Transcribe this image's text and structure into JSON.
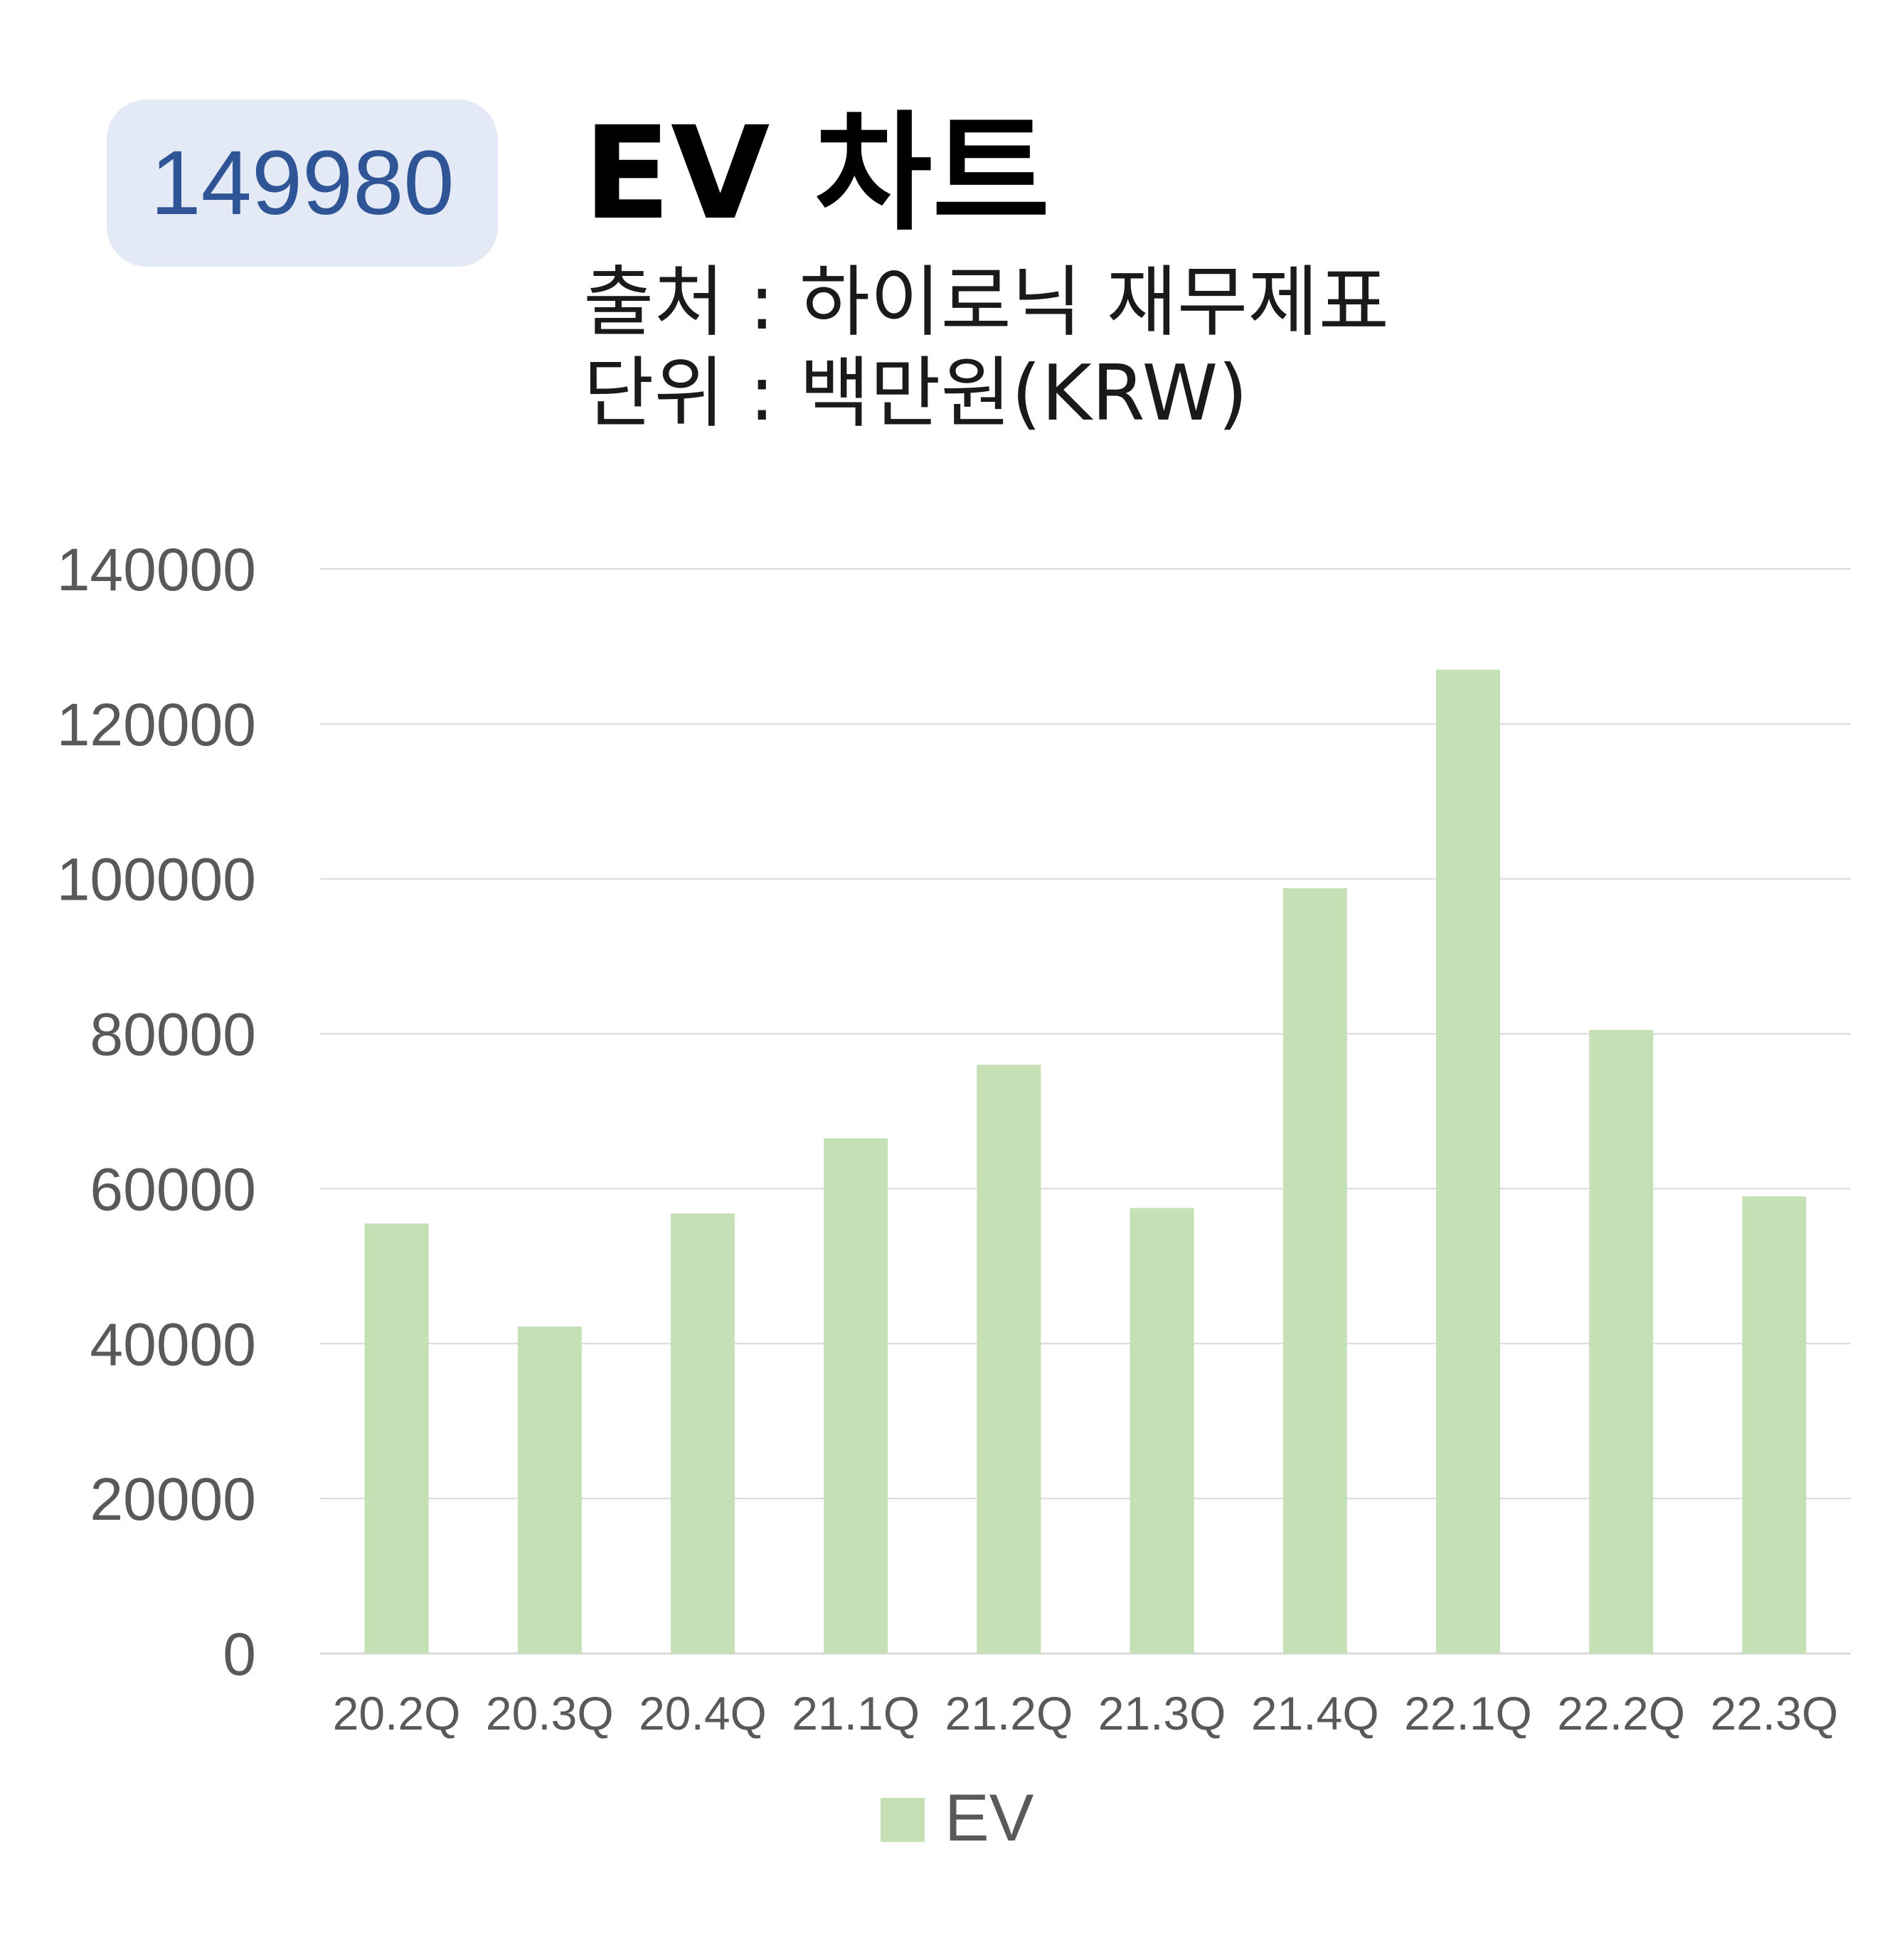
{
  "header": {
    "code": "149980",
    "title": "EV 차트",
    "source": "출처 : 하이로닉 재무제표",
    "unit": "단위 : 백만원(KRW)"
  },
  "colors": {
    "bar": "#c5e0b4",
    "grid": "#d9d9d9",
    "axis_text": "#595959",
    "badge_bg": "#e4eaf5",
    "badge_text": "#2f5597"
  },
  "chart_data": {
    "type": "bar",
    "categories": [
      "20.2Q",
      "20.3Q",
      "20.4Q",
      "21.1Q",
      "21.2Q",
      "21.3Q",
      "21.4Q",
      "22.1Q",
      "22.2Q",
      "22.3Q"
    ],
    "series": [
      {
        "name": "EV",
        "values": [
          55500,
          42200,
          56800,
          66500,
          76000,
          57500,
          98800,
          127000,
          80500,
          59000
        ]
      }
    ],
    "y_ticks": [
      "0",
      "20000",
      "40000",
      "60000",
      "80000",
      "100000",
      "120000",
      "140000"
    ],
    "ylim": [
      0,
      140000
    ],
    "grid": true,
    "legend": "bottom"
  }
}
